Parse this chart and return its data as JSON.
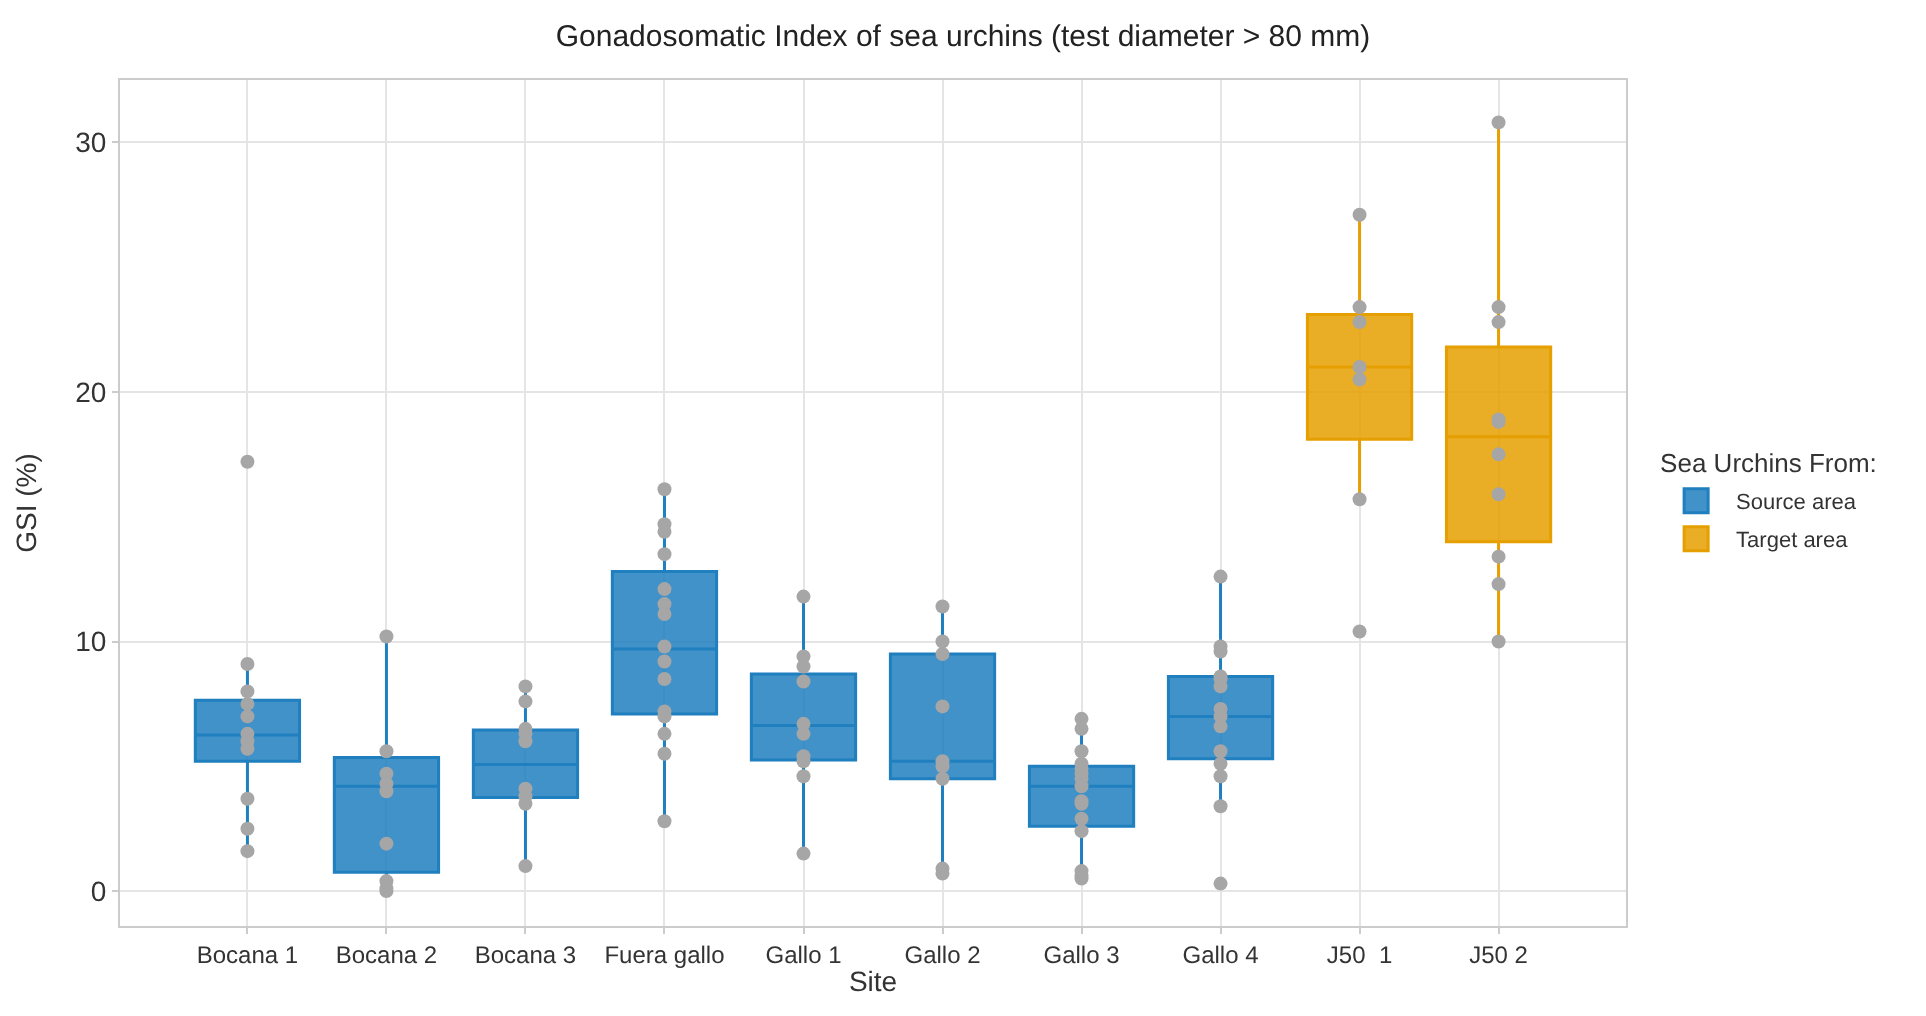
{
  "chart_data": {
    "type": "box",
    "title": "Gonadosomatic Index of sea urchins (test diameter > 80 mm)",
    "xlabel": "Site",
    "ylabel": "GSI (%)",
    "legend_title": "Sea Urchins From:",
    "categories": [
      "Bocana 1",
      "Bocana 2",
      "Bocana 3",
      "Fuera gallo",
      "Gallo 1",
      "Gallo 2",
      "Gallo 3",
      "Gallo 4",
      "J50  1",
      "J50 2"
    ],
    "series": [
      {
        "name": "Source area",
        "color": "#1f7fbf",
        "boxes": [
          {
            "low": 1.65,
            "q1": 5.2,
            "median": 6.25,
            "q3": 7.65,
            "high": 8.9
          },
          {
            "low": 0.0,
            "q1": 0.75,
            "median": 4.2,
            "q3": 5.35,
            "high": 10.2
          },
          {
            "low": 1.0,
            "q1": 3.75,
            "median": 5.07,
            "q3": 6.45,
            "high": 8.1
          },
          {
            "low": 2.8,
            "q1": 7.1,
            "median": 9.7,
            "q3": 12.8,
            "high": 16.1
          },
          {
            "low": 1.45,
            "q1": 5.25,
            "median": 6.63,
            "q3": 8.7,
            "high": 11.8
          },
          {
            "low": 0.8,
            "q1": 4.5,
            "median": 5.2,
            "q3": 9.5,
            "high": 11.3
          },
          {
            "low": 0.6,
            "q1": 2.6,
            "median": 4.2,
            "q3": 5.0,
            "high": 6.9
          },
          {
            "low": 3.4,
            "q1": 5.3,
            "median": 7.0,
            "q3": 8.6,
            "high": 12.6
          },
          null,
          null
        ]
      },
      {
        "name": "Target area",
        "color": "#e69f00",
        "boxes": [
          null,
          null,
          null,
          null,
          null,
          null,
          null,
          null,
          {
            "low": 15.7,
            "q1": 18.1,
            "median": 21.0,
            "q3": 23.1,
            "high": 27.1
          },
          {
            "low": 10.05,
            "q1": 14.0,
            "median": 18.2,
            "q3": 21.8,
            "high": 30.8
          }
        ]
      },
      {
        "type": "scatter",
        "color": "#a6a6a6",
        "marker": "circle",
        "x": [
          "Bocana 1",
          "Bocana 1",
          "Bocana 1",
          "Bocana 1",
          "Bocana 1",
          "Bocana 1",
          "Bocana 1",
          "Bocana 1",
          "Bocana 1",
          "Bocana 1",
          "Bocana 1",
          "Bocana 2",
          "Bocana 2",
          "Bocana 2",
          "Bocana 2",
          "Bocana 2",
          "Bocana 2",
          "Bocana 2",
          "Bocana 2",
          "Bocana 2",
          "Bocana 3",
          "Bocana 3",
          "Bocana 3",
          "Bocana 3",
          "Bocana 3",
          "Bocana 3",
          "Bocana 3",
          "Bocana 3",
          "Bocana 3",
          "Fuera gallo",
          "Fuera gallo",
          "Fuera gallo",
          "Fuera gallo",
          "Fuera gallo",
          "Fuera gallo",
          "Fuera gallo",
          "Fuera gallo",
          "Fuera gallo",
          "Fuera gallo",
          "Fuera gallo",
          "Fuera gallo",
          "Fuera gallo",
          "Fuera gallo",
          "Fuera gallo",
          "Gallo 1",
          "Gallo 1",
          "Gallo 1",
          "Gallo 1",
          "Gallo 1",
          "Gallo 1",
          "Gallo 1",
          "Gallo 1",
          "Gallo 1",
          "Gallo 1",
          "Gallo 2",
          "Gallo 2",
          "Gallo 2",
          "Gallo 2",
          "Gallo 2",
          "Gallo 2",
          "Gallo 2",
          "Gallo 2",
          "Gallo 2",
          "Gallo 3",
          "Gallo 3",
          "Gallo 3",
          "Gallo 3",
          "Gallo 3",
          "Gallo 3",
          "Gallo 3",
          "Gallo 3",
          "Gallo 3",
          "Gallo 3",
          "Gallo 3",
          "Gallo 3",
          "Gallo 3",
          "Gallo 3",
          "Gallo 3",
          "Gallo 4",
          "Gallo 4",
          "Gallo 4",
          "Gallo 4",
          "Gallo 4",
          "Gallo 4",
          "Gallo 4",
          "Gallo 4",
          "Gallo 4",
          "Gallo 4",
          "Gallo 4",
          "Gallo 4",
          "Gallo 4",
          "Gallo 4",
          "J50  1",
          "J50  1",
          "J50  1",
          "J50  1",
          "J50  1",
          "J50  1",
          "J50  1",
          "J50 2",
          "J50 2",
          "J50 2",
          "J50 2",
          "J50 2",
          "J50 2",
          "J50 2",
          "J50 2",
          "J50 2",
          "J50 2"
        ],
        "values": [
          17.2,
          9.1,
          8.0,
          7.5,
          7.0,
          6.3,
          6.0,
          5.7,
          3.7,
          2.5,
          1.6,
          10.2,
          5.6,
          4.7,
          4.3,
          4.0,
          1.9,
          0.4,
          0.1,
          0.0,
          8.2,
          7.6,
          6.5,
          6.3,
          6.0,
          4.1,
          3.8,
          3.5,
          1.0,
          16.1,
          14.7,
          14.4,
          13.5,
          12.1,
          11.5,
          11.1,
          9.8,
          9.2,
          8.5,
          7.2,
          7.0,
          6.3,
          5.5,
          2.8,
          11.8,
          9.4,
          9.0,
          8.4,
          6.7,
          6.3,
          5.4,
          5.2,
          4.6,
          1.5,
          11.4,
          10.0,
          9.5,
          7.4,
          5.2,
          5.0,
          4.5,
          0.9,
          0.7,
          6.9,
          6.5,
          5.6,
          5.1,
          4.9,
          4.7,
          4.5,
          4.2,
          3.6,
          3.5,
          2.9,
          2.4,
          0.8,
          0.6,
          0.5,
          12.6,
          9.8,
          9.6,
          8.6,
          8.5,
          8.2,
          7.3,
          7.0,
          6.6,
          5.6,
          5.1,
          4.6,
          3.4,
          0.3,
          27.1,
          23.4,
          22.8,
          21.0,
          20.5,
          15.7,
          10.4,
          30.8,
          23.4,
          22.8,
          18.9,
          18.8,
          17.5,
          15.9,
          13.4,
          12.3,
          10.0
        ]
      }
    ],
    "ylim": [
      -1.4,
      32.5
    ],
    "yticks": [
      0,
      10,
      20,
      30
    ],
    "grid": true,
    "legend": "right"
  }
}
